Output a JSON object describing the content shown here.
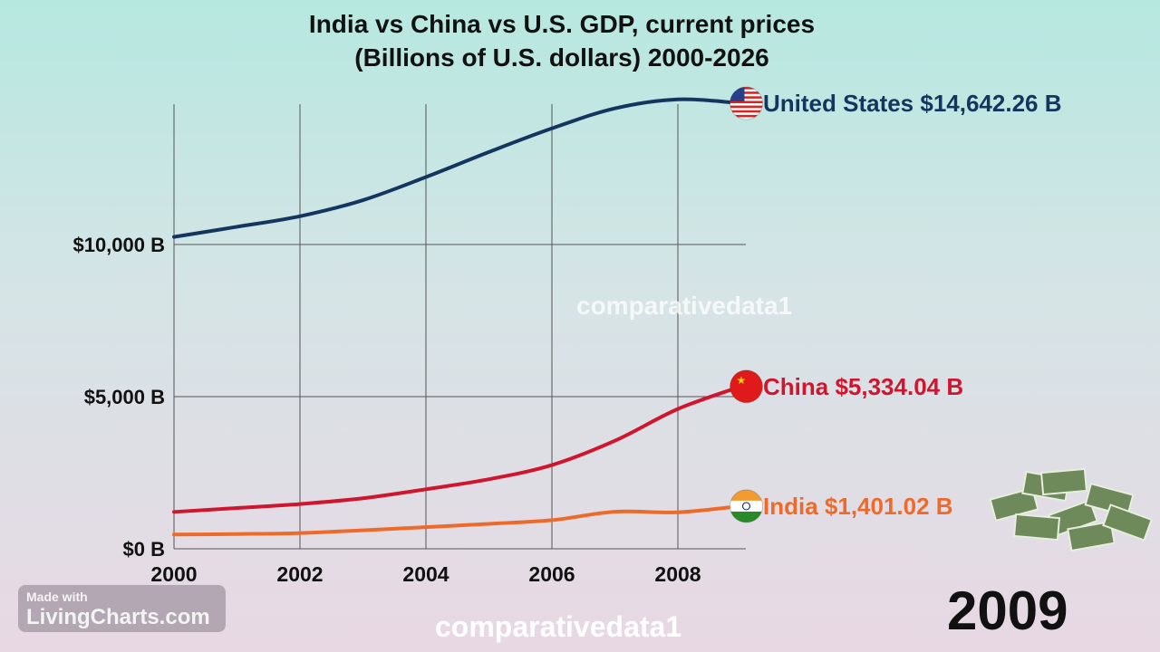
{
  "chart_data": {
    "type": "line",
    "title": "India vs China vs U.S. GDP, current prices",
    "subtitle": "(Billions of U.S. dollars) 2000-2026",
    "x": [
      2000,
      2001,
      2002,
      2003,
      2004,
      2005,
      2006,
      2007,
      2008,
      2009
    ],
    "x_ticks": [
      "2000",
      "2002",
      "2004",
      "2006",
      "2008"
    ],
    "y_ticks": [
      "$0 B",
      "$5,000 B",
      "$10,000 B"
    ],
    "y_tick_values": [
      0,
      5000,
      10000
    ],
    "ylim": [
      0,
      15000
    ],
    "grid": true,
    "series": [
      {
        "name": "United States",
        "label": "United States $14,642.26 B",
        "color": "#14365e",
        "flag": "us-flag-icon",
        "values": [
          10250,
          10582,
          10929,
          11457,
          12217,
          13039,
          13816,
          14474,
          14770,
          14642.26
        ]
      },
      {
        "name": "China",
        "label": "China $5,334.04 B",
        "color": "#d0162e",
        "flag": "china-flag-icon",
        "values": [
          1211,
          1339,
          1471,
          1660,
          1955,
          2286,
          2752,
          3550,
          4594,
          5334.04
        ]
      },
      {
        "name": "India",
        "label": "India $1,401.02 B",
        "color": "#ee6a2a",
        "flag": "india-flag-icon",
        "values": [
          468,
          485,
          515,
          608,
          709,
          820,
          940,
          1216,
          1199,
          1401.02
        ]
      }
    ],
    "current_year": "2009"
  },
  "watermarks": {
    "center": "comparativedata1",
    "bottom": "comparativedata1"
  },
  "badge": {
    "line1": "Made with",
    "line2": "LivingCharts.com"
  }
}
